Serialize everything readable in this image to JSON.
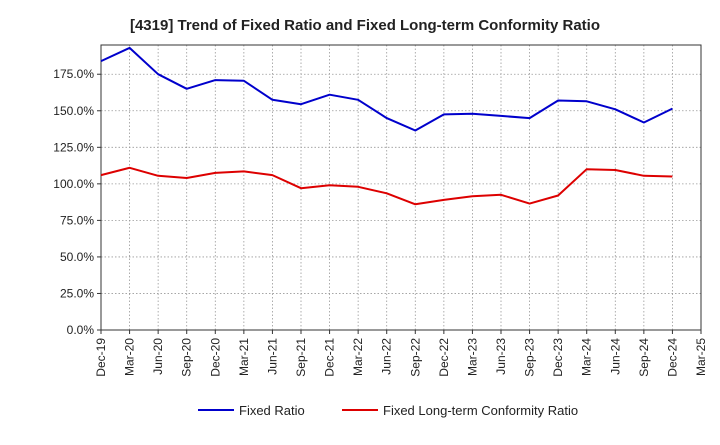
{
  "chart_data": {
    "type": "line",
    "title": "[4319]  Trend of Fixed Ratio and Fixed Long-term Conformity Ratio",
    "xlabel": "",
    "ylabel": "",
    "x": [
      "Dec-19",
      "Mar-20",
      "Jun-20",
      "Sep-20",
      "Dec-20",
      "Mar-21",
      "Jun-21",
      "Sep-21",
      "Dec-21",
      "Mar-22",
      "Jun-22",
      "Sep-22",
      "Dec-22",
      "Mar-23",
      "Jun-23",
      "Sep-23",
      "Dec-23",
      "Mar-24",
      "Jun-24",
      "Sep-24",
      "Dec-24",
      "Mar-25"
    ],
    "yticks": [
      0,
      25,
      50,
      75,
      100,
      125,
      150,
      175
    ],
    "ytick_labels": [
      "0.0%",
      "25.0%",
      "50.0%",
      "75.0%",
      "100.0%",
      "125.0%",
      "150.0%",
      "175.0%"
    ],
    "ylim": [
      0,
      195
    ],
    "grid": true,
    "legend_position": "bottom",
    "series": [
      {
        "name": "Fixed Ratio",
        "color": "#0000cc",
        "values": [
          184,
          193,
          175,
          165,
          171,
          170.5,
          157.5,
          154.5,
          161,
          157.5,
          145,
          136.5,
          147.5,
          148,
          146.5,
          145,
          157,
          156.5,
          151,
          142,
          151.5,
          null
        ]
      },
      {
        "name": "Fixed Long-term Conformity Ratio",
        "color": "#dd0000",
        "values": [
          106,
          111,
          105.5,
          104,
          107.5,
          108.5,
          106,
          97,
          99,
          98,
          93.5,
          86,
          89,
          91.5,
          92.5,
          86.5,
          92,
          110,
          109.5,
          105.5,
          105,
          null
        ]
      }
    ]
  }
}
